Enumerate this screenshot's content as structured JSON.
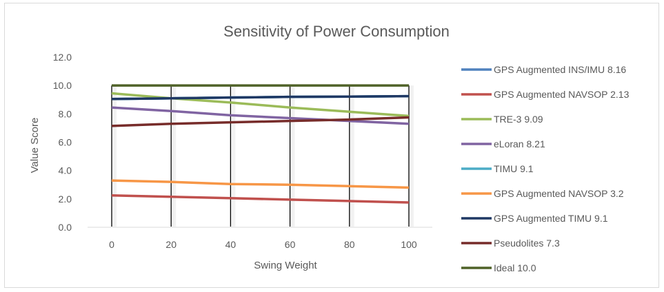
{
  "chart_data": {
    "type": "line",
    "title": "Sensitivity of Power Consumption",
    "xlabel": "Swing Weight",
    "ylabel": "Value Score",
    "x": [
      0,
      20,
      40,
      60,
      80,
      100
    ],
    "x_tick_labels": [
      "0",
      "20",
      "40",
      "60",
      "80",
      "100"
    ],
    "ylim": [
      0,
      12
    ],
    "y_tick_labels": [
      "0.0",
      "2.0",
      "4.0",
      "6.0",
      "8.0",
      "10.0",
      "12.0"
    ],
    "y_ticks": [
      0,
      2,
      4,
      6,
      8,
      10,
      12
    ],
    "grid": false,
    "legend_position": "right",
    "series": [
      {
        "name": "GPS Augmented INS/IMU  8.16",
        "color": "#4f81bd",
        "values": [
          9.05,
          9.1,
          9.15,
          9.2,
          9.22,
          9.25
        ]
      },
      {
        "name": "GPS Augmented NAVSOP 2.13",
        "color": "#c0504d",
        "values": [
          2.25,
          2.15,
          2.05,
          1.95,
          1.85,
          1.75
        ]
      },
      {
        "name": "TRE-3 9.09",
        "color": "#9bbb59",
        "values": [
          9.45,
          9.1,
          8.8,
          8.45,
          8.15,
          7.85
        ]
      },
      {
        "name": "eLoran 8.21",
        "color": "#8064a2",
        "values": [
          8.45,
          8.2,
          7.9,
          7.7,
          7.5,
          7.3
        ]
      },
      {
        "name": "TIMU 9.1",
        "color": "#4bacc6",
        "values": [
          9.05,
          9.1,
          9.15,
          9.2,
          9.22,
          9.25
        ]
      },
      {
        "name": "GPS Augmented NAVSOP 3.2",
        "color": "#f79646",
        "values": [
          3.3,
          3.2,
          3.05,
          3.0,
          2.9,
          2.8
        ]
      },
      {
        "name": "GPS Augmented TIMU 9.1",
        "color": "#1f3864",
        "values": [
          9.05,
          9.1,
          9.15,
          9.2,
          9.22,
          9.25
        ]
      },
      {
        "name": "Pseudolites 7.3",
        "color": "#772c2a",
        "values": [
          7.15,
          7.3,
          7.4,
          7.5,
          7.6,
          7.75
        ]
      },
      {
        "name": "Ideal 10.0",
        "color": "#4f6228",
        "values": [
          10.0,
          10.0,
          10.0,
          10.0,
          10.0,
          10.0
        ]
      }
    ],
    "drop_lines_color": "#000000"
  }
}
